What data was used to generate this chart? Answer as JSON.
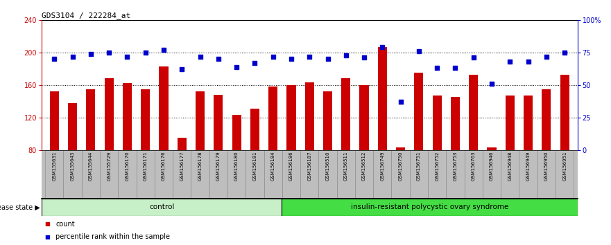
{
  "title": "GDS3104 / 222284_at",
  "samples": [
    "GSM155631",
    "GSM155643",
    "GSM155644",
    "GSM155729",
    "GSM156170",
    "GSM156171",
    "GSM156176",
    "GSM156177",
    "GSM156178",
    "GSM156179",
    "GSM156180",
    "GSM156181",
    "GSM156184",
    "GSM156186",
    "GSM156187",
    "GSM156510",
    "GSM156511",
    "GSM156512",
    "GSM156749",
    "GSM156750",
    "GSM156751",
    "GSM156752",
    "GSM156753",
    "GSM156763",
    "GSM156946",
    "GSM156948",
    "GSM156949",
    "GSM156950",
    "GSM156951"
  ],
  "bar_values": [
    152,
    138,
    155,
    168,
    162,
    155,
    183,
    95,
    152,
    148,
    123,
    131,
    158,
    160,
    163,
    152,
    168,
    160,
    207,
    83,
    175,
    147,
    145,
    173,
    83,
    147,
    147,
    155,
    173
  ],
  "dot_pct": [
    70,
    72,
    74,
    75,
    72,
    75,
    77,
    62,
    72,
    70,
    64,
    67,
    72,
    70,
    72,
    70,
    73,
    71,
    79,
    37,
    76,
    63,
    63,
    71,
    51,
    68,
    68,
    72,
    75
  ],
  "group_labels": [
    "control",
    "insulin-resistant polycystic ovary syndrome"
  ],
  "control_count": 13,
  "disease_count": 16,
  "bar_color": "#CC0000",
  "dot_color": "#0000CC",
  "left_ylim": [
    80,
    240
  ],
  "right_ylim": [
    0,
    100
  ],
  "left_yticks": [
    80,
    120,
    160,
    200,
    240
  ],
  "right_yticks": [
    0,
    25,
    50,
    75,
    100
  ],
  "right_yticklabels": [
    "0",
    "25",
    "50",
    "75",
    "100%"
  ],
  "dotted_lines": [
    120,
    160,
    200
  ],
  "control_color": "#C8F0C8",
  "disease_color": "#44DD44",
  "label_strip_color": "#BEBEBE"
}
